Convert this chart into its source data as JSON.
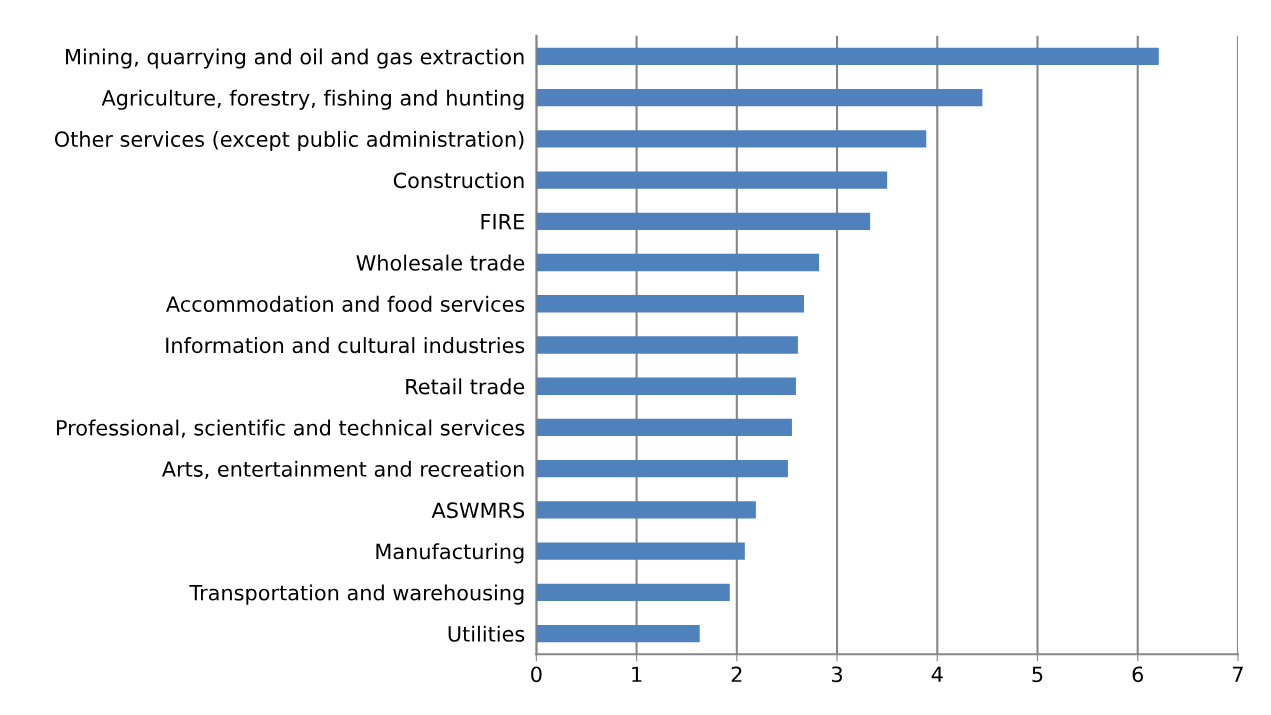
{
  "chart_data": {
    "type": "bar",
    "orientation": "horizontal",
    "categories": [
      "Mining, quarrying and oil and gas extraction",
      "Agriculture, forestry, fishing and hunting",
      "Other services (except public administration)",
      "Construction",
      "FIRE",
      "Wholesale trade",
      "Accommodation and food services",
      "Information and cultural industries",
      "Retail trade",
      "Professional, scientific and technical services",
      "Arts, entertainment and recreation",
      "ASWMRS",
      "Manufacturing",
      "Transportation and warehousing",
      "Utilities"
    ],
    "values": [
      6.21,
      4.45,
      3.89,
      3.5,
      3.33,
      2.82,
      2.67,
      2.61,
      2.59,
      2.55,
      2.51,
      2.19,
      2.08,
      1.93,
      1.63
    ],
    "color": "#4f81bd",
    "xlim": [
      0,
      7
    ],
    "xticks": [
      0,
      1,
      2,
      3,
      4,
      5,
      6,
      7
    ],
    "grid": "x",
    "legend": false
  }
}
